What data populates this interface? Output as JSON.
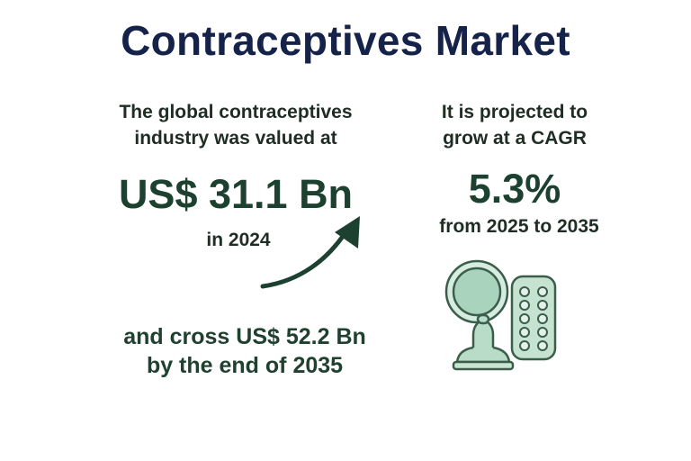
{
  "title": "Contraceptives Market",
  "left": {
    "intro_line1": "The global contraceptives",
    "intro_line2": "industry was valued at",
    "value": "US$ 31.1 Bn",
    "year": "in 2024",
    "forecast_line1": "and cross US$ 52.2 Bn",
    "forecast_line2": "by the end of 2035"
  },
  "right": {
    "intro_line1": "It is projected to",
    "intro_line2": "grow at a CAGR",
    "cagr": "5.3%",
    "period": "from 2025 to 2035"
  },
  "colors": {
    "title": "#15224a",
    "accent_green": "#1d4130",
    "illustration_fill": "#b9dcc8",
    "illustration_stroke": "#3a5e4a"
  },
  "icons": [
    "growth-arrow-icon",
    "contraceptive-ring-icon",
    "condom-icon",
    "pill-pack-icon"
  ]
}
